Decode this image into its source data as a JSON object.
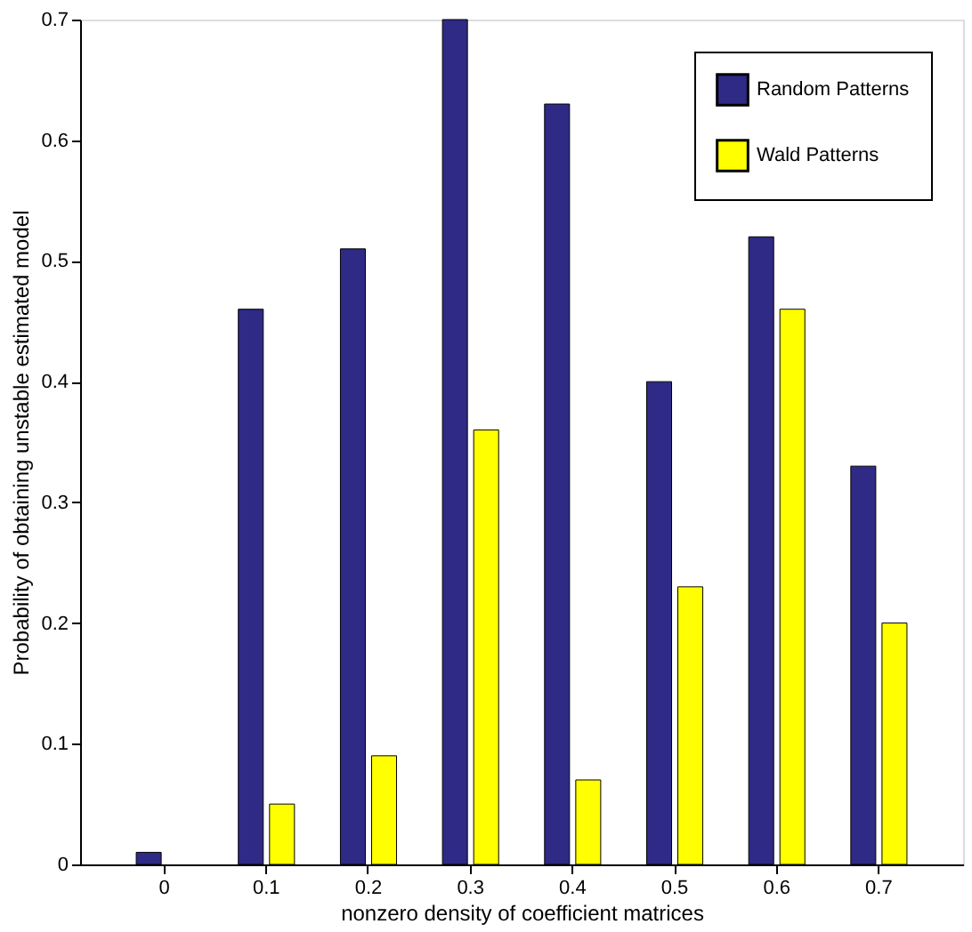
{
  "chart_data": {
    "type": "bar",
    "xlabel": "nonzero density of coefficient matrices",
    "ylabel": "Probability of obtaining unstable estimated model",
    "categories": [
      "0",
      "0.1",
      "0.2",
      "0.3",
      "0.4",
      "0.5",
      "0.6",
      "0.7"
    ],
    "series": [
      {
        "name": "Random Patterns",
        "color": "#2e2a85",
        "values": [
          0.01,
          0.46,
          0.51,
          0.7,
          0.63,
          0.4,
          0.52,
          0.33
        ]
      },
      {
        "name": "Wald Patterns",
        "color": "#ffff00",
        "values": [
          null,
          0.05,
          0.09,
          0.36,
          0.07,
          0.23,
          0.46,
          0.2
        ]
      }
    ],
    "ylim": [
      0,
      0.7
    ],
    "yticks": [
      0,
      0.1,
      0.2,
      0.3,
      0.4,
      0.5,
      0.6,
      0.7
    ],
    "grid": false,
    "legend": "top right"
  }
}
